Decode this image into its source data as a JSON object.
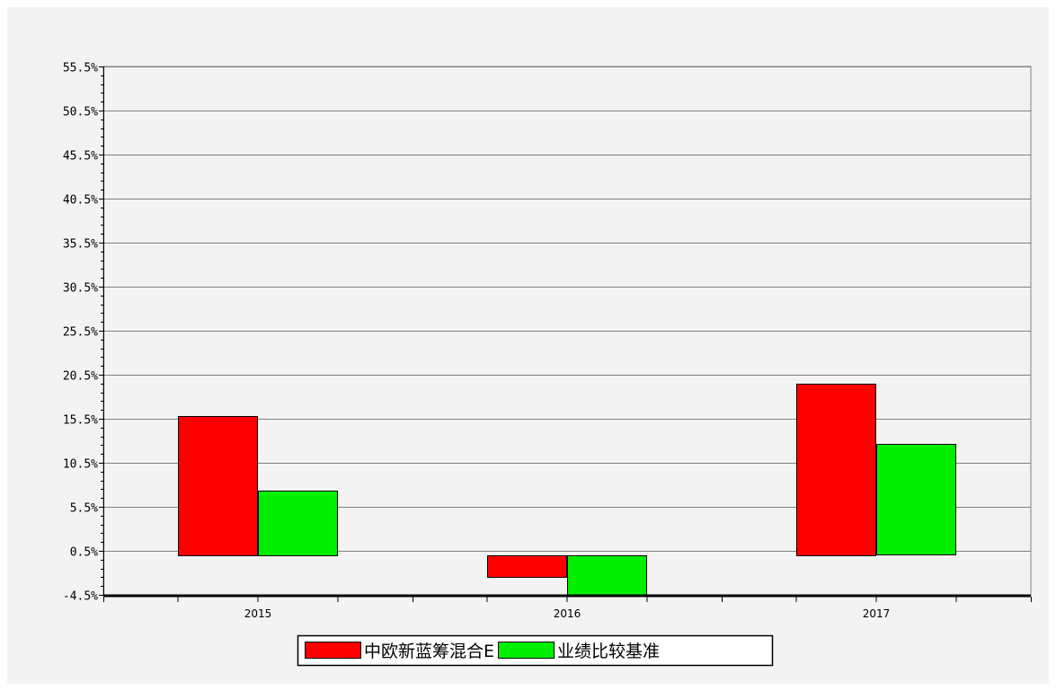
{
  "chart_data": {
    "type": "bar",
    "title": "",
    "xlabel": "",
    "ylabel": "",
    "categories": [
      "2015",
      "2016",
      "2017"
    ],
    "series": [
      {
        "name": "中欧新蓝筹混合E",
        "color": "#ff0000",
        "values": [
          15.8,
          -2.4,
          19.5
        ]
      },
      {
        "name": "业绩比较基准",
        "color": "#00ee00",
        "values": [
          7.3,
          -5.0,
          12.6
        ]
      }
    ],
    "ylim": [
      -4.5,
      55.5
    ],
    "yticks": [
      "55.5%",
      "50.5%",
      "45.5%",
      "40.5%",
      "35.5%",
      "30.5%",
      "25.5%",
      "20.5%",
      "15.5%",
      "10.5%",
      "5.5%",
      "0.5%",
      "-4.5%"
    ],
    "ytick_values": [
      55.5,
      50.5,
      45.5,
      40.5,
      35.5,
      30.5,
      25.5,
      20.5,
      15.5,
      10.5,
      5.5,
      0.5,
      -4.5
    ],
    "grid": true,
    "legend_position": "bottom-center",
    "colors": {
      "background": "#f3f3f3",
      "plot_background": "#f3f3f3",
      "grid": "#808080"
    }
  }
}
